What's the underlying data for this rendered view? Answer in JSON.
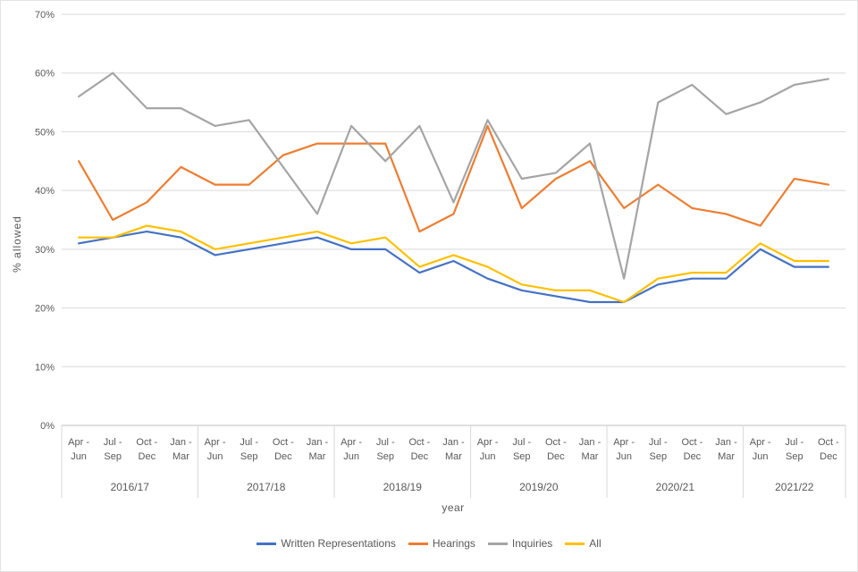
{
  "chart_data": {
    "type": "line",
    "title": "",
    "ylabel": "% allowed",
    "xlabel": "year",
    "ylim": [
      0,
      70
    ],
    "ytick_step": 10,
    "ytick_labels": [
      "0%",
      "10%",
      "20%",
      "30%",
      "40%",
      "50%",
      "60%",
      "70%"
    ],
    "grid": true,
    "legend_position": "bottom",
    "year_groups": [
      {
        "label": "2016/17",
        "count": 4
      },
      {
        "label": "2017/18",
        "count": 4
      },
      {
        "label": "2018/19",
        "count": 4
      },
      {
        "label": "2019/20",
        "count": 4
      },
      {
        "label": "2020/21",
        "count": 4
      },
      {
        "label": "2021/22",
        "count": 3
      }
    ],
    "quarter_labels": [
      [
        "Apr -",
        "Jun"
      ],
      [
        "Jul -",
        "Sep"
      ],
      [
        "Oct -",
        "Dec"
      ],
      [
        "Jan -",
        "Mar"
      ],
      [
        "Apr -",
        "Jun"
      ],
      [
        "Jul -",
        "Sep"
      ],
      [
        "Oct -",
        "Dec"
      ],
      [
        "Jan -",
        "Mar"
      ],
      [
        "Apr -",
        "Jun"
      ],
      [
        "Jul -",
        "Sep"
      ],
      [
        "Oct -",
        "Dec"
      ],
      [
        "Jan -",
        "Mar"
      ],
      [
        "Apr -",
        "Jun"
      ],
      [
        "Jul -",
        "Sep"
      ],
      [
        "Oct -",
        "Dec"
      ],
      [
        "Jan -",
        "Mar"
      ],
      [
        "Apr -",
        "Jun"
      ],
      [
        "Jul -",
        "Sep"
      ],
      [
        "Oct -",
        "Dec"
      ],
      [
        "Jan -",
        "Mar"
      ],
      [
        "Apr -",
        "Jun"
      ],
      [
        "Jul -",
        "Sep"
      ],
      [
        "Oct -",
        "Dec"
      ]
    ],
    "series": [
      {
        "name": "Written Representations",
        "color": "#4472C4",
        "values": [
          31,
          32,
          33,
          32,
          29,
          30,
          31,
          32,
          30,
          30,
          26,
          28,
          25,
          23,
          22,
          21,
          21,
          24,
          25,
          25,
          30,
          27,
          27
        ]
      },
      {
        "name": "Hearings",
        "color": "#ED7D31",
        "values": [
          45,
          35,
          38,
          44,
          41,
          41,
          46,
          48,
          48,
          48,
          33,
          36,
          51,
          37,
          42,
          45,
          37,
          41,
          37,
          36,
          34,
          42,
          41
        ]
      },
      {
        "name": "Inquiries",
        "color": "#A5A5A5",
        "values": [
          56,
          60,
          54,
          54,
          51,
          52,
          44,
          36,
          51,
          45,
          51,
          38,
          52,
          42,
          43,
          48,
          25,
          55,
          58,
          53,
          55,
          58,
          59
        ]
      },
      {
        "name": "All",
        "color": "#FFC000",
        "values": [
          32,
          32,
          34,
          33,
          30,
          31,
          32,
          33,
          31,
          32,
          27,
          29,
          27,
          24,
          23,
          23,
          21,
          25,
          26,
          26,
          31,
          28,
          28
        ]
      }
    ],
    "colors": {
      "gridline": "#d9d9d9",
      "axis_line": "#bfbfbf",
      "separator": "#d9d9d9",
      "text": "#595959"
    }
  }
}
